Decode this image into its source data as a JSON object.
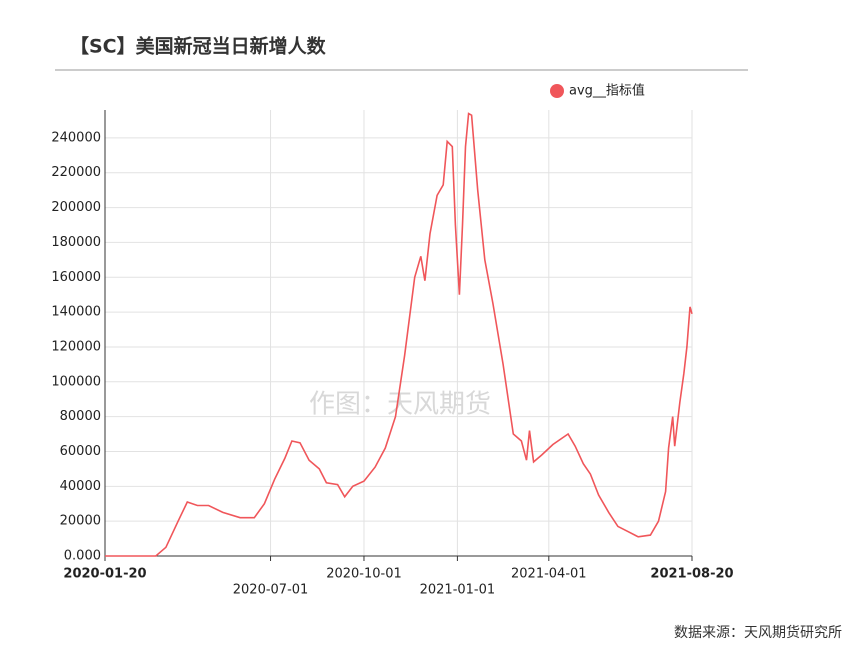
{
  "chart_data": {
    "type": "line",
    "title": "【SC】美国新冠当日新增人数",
    "watermark": "作图：天风期货",
    "source": "数据来源：天风期货研究所",
    "xlim": [
      "2020-01-20",
      "2021-08-20"
    ],
    "xticks": [
      "2020-01-20",
      "2020-07-01",
      "2020-10-01",
      "2021-01-01",
      "2021-04-01",
      "2021-08-20"
    ],
    "ylim": [
      0,
      256000
    ],
    "yticks": [
      {
        "value": 0,
        "label": "0.000"
      },
      20000,
      40000,
      60000,
      80000,
      100000,
      120000,
      140000,
      160000,
      180000,
      200000,
      220000,
      240000
    ],
    "grid": true,
    "legend": "top-right",
    "x": [
      "2020-01-20",
      "2020-03-10",
      "2020-03-20",
      "2020-04-01",
      "2020-04-10",
      "2020-04-20",
      "2020-05-01",
      "2020-05-15",
      "2020-06-01",
      "2020-06-15",
      "2020-06-25",
      "2020-07-05",
      "2020-07-15",
      "2020-07-22",
      "2020-07-30",
      "2020-08-08",
      "2020-08-18",
      "2020-08-25",
      "2020-09-05",
      "2020-09-12",
      "2020-09-20",
      "2020-10-01",
      "2020-10-12",
      "2020-10-22",
      "2020-11-01",
      "2020-11-10",
      "2020-11-20",
      "2020-11-26",
      "2020-11-30",
      "2020-12-05",
      "2020-12-12",
      "2020-12-18",
      "2020-12-22",
      "2020-12-27",
      "2020-12-30",
      "2021-01-03",
      "2021-01-06",
      "2021-01-09",
      "2021-01-12",
      "2021-01-15",
      "2021-01-21",
      "2021-01-28",
      "2021-02-05",
      "2021-02-15",
      "2021-02-25",
      "2021-03-05",
      "2021-03-10",
      "2021-03-13",
      "2021-03-17",
      "2021-03-25",
      "2021-04-05",
      "2021-04-15",
      "2021-04-20",
      "2021-04-27",
      "2021-05-05",
      "2021-05-12",
      "2021-05-20",
      "2021-05-30",
      "2021-06-08",
      "2021-06-18",
      "2021-06-28",
      "2021-07-10",
      "2021-07-18",
      "2021-07-25",
      "2021-07-28",
      "2021-08-01",
      "2021-08-03",
      "2021-08-08",
      "2021-08-12",
      "2021-08-15",
      "2021-08-18",
      "2021-08-20"
    ],
    "series": [
      {
        "name": "avg__指标值",
        "color": "#f0565a",
        "values": [
          0,
          0,
          5000,
          20000,
          31000,
          29000,
          29000,
          25000,
          22000,
          22000,
          30000,
          44000,
          56000,
          66000,
          65000,
          55000,
          50000,
          42000,
          41000,
          34000,
          40000,
          43000,
          51000,
          62000,
          80000,
          115000,
          160000,
          172000,
          158000,
          185000,
          207000,
          213000,
          238000,
          235000,
          190000,
          150000,
          190000,
          235000,
          254000,
          253000,
          210000,
          170000,
          145000,
          110000,
          70000,
          66000,
          55000,
          72000,
          54000,
          58000,
          64000,
          68000,
          70000,
          63000,
          53000,
          47000,
          35000,
          25000,
          17000,
          14000,
          11000,
          12000,
          20000,
          37000,
          62000,
          80000,
          63000,
          88000,
          105000,
          120000,
          143000,
          139000
        ]
      }
    ]
  }
}
